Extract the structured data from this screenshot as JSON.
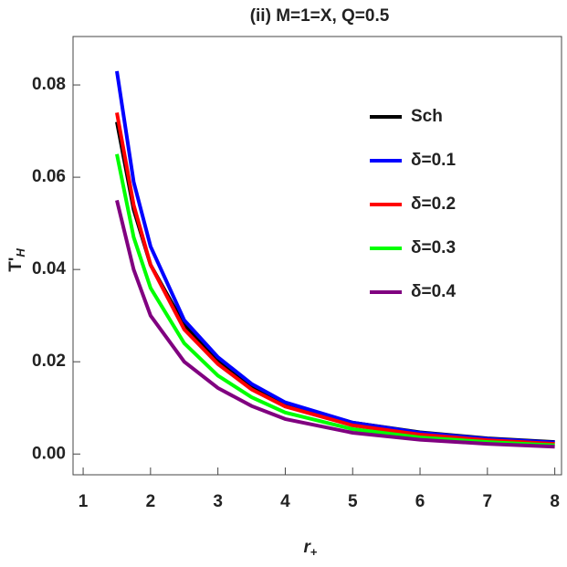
{
  "chart_data": {
    "type": "line",
    "title": "(ii) M=1=X, Q=0.5",
    "x_label": {
      "main": "r",
      "sub": "+"
    },
    "y_label": {
      "main": "T'",
      "sub": "H"
    },
    "x": [
      1.5,
      1.75,
      2,
      2.5,
      3,
      3.5,
      4,
      5,
      6,
      7,
      8
    ],
    "series": [
      {
        "name": "Sch",
        "color": "#000000",
        "values": [
          0.072,
          0.053,
          0.041,
          0.028,
          0.0205,
          0.0145,
          0.0108,
          0.0068,
          0.0047,
          0.0034,
          0.0026
        ]
      },
      {
        "name": "δ=0.1",
        "color": "#0000ff",
        "values": [
          0.083,
          0.059,
          0.045,
          0.029,
          0.021,
          0.0152,
          0.0112,
          0.0068,
          0.0046,
          0.0033,
          0.0025
        ]
      },
      {
        "name": "δ=0.2",
        "color": "#ff0000",
        "values": [
          0.074,
          0.054,
          0.041,
          0.027,
          0.0195,
          0.014,
          0.0103,
          0.0062,
          0.0042,
          0.003,
          0.0022
        ]
      },
      {
        "name": "δ=0.3",
        "color": "#00ff00",
        "values": [
          0.065,
          0.047,
          0.036,
          0.024,
          0.017,
          0.0123,
          0.009,
          0.0054,
          0.0036,
          0.0026,
          0.0019
        ]
      },
      {
        "name": "δ=0.4",
        "color": "#800080",
        "values": [
          0.055,
          0.04,
          0.03,
          0.02,
          0.0143,
          0.0104,
          0.0076,
          0.0046,
          0.0031,
          0.0022,
          0.0016
        ]
      }
    ],
    "xlim": [
      0.85,
      8.1
    ],
    "ylim": [
      -0.0045,
      0.0905
    ],
    "xticks": [
      1,
      2,
      3,
      4,
      5,
      6,
      7,
      8
    ],
    "yticks": [
      {
        "value": 0,
        "label": "0.00"
      },
      0.02,
      0.04,
      0.06,
      0.08
    ],
    "legend": "upper right"
  }
}
